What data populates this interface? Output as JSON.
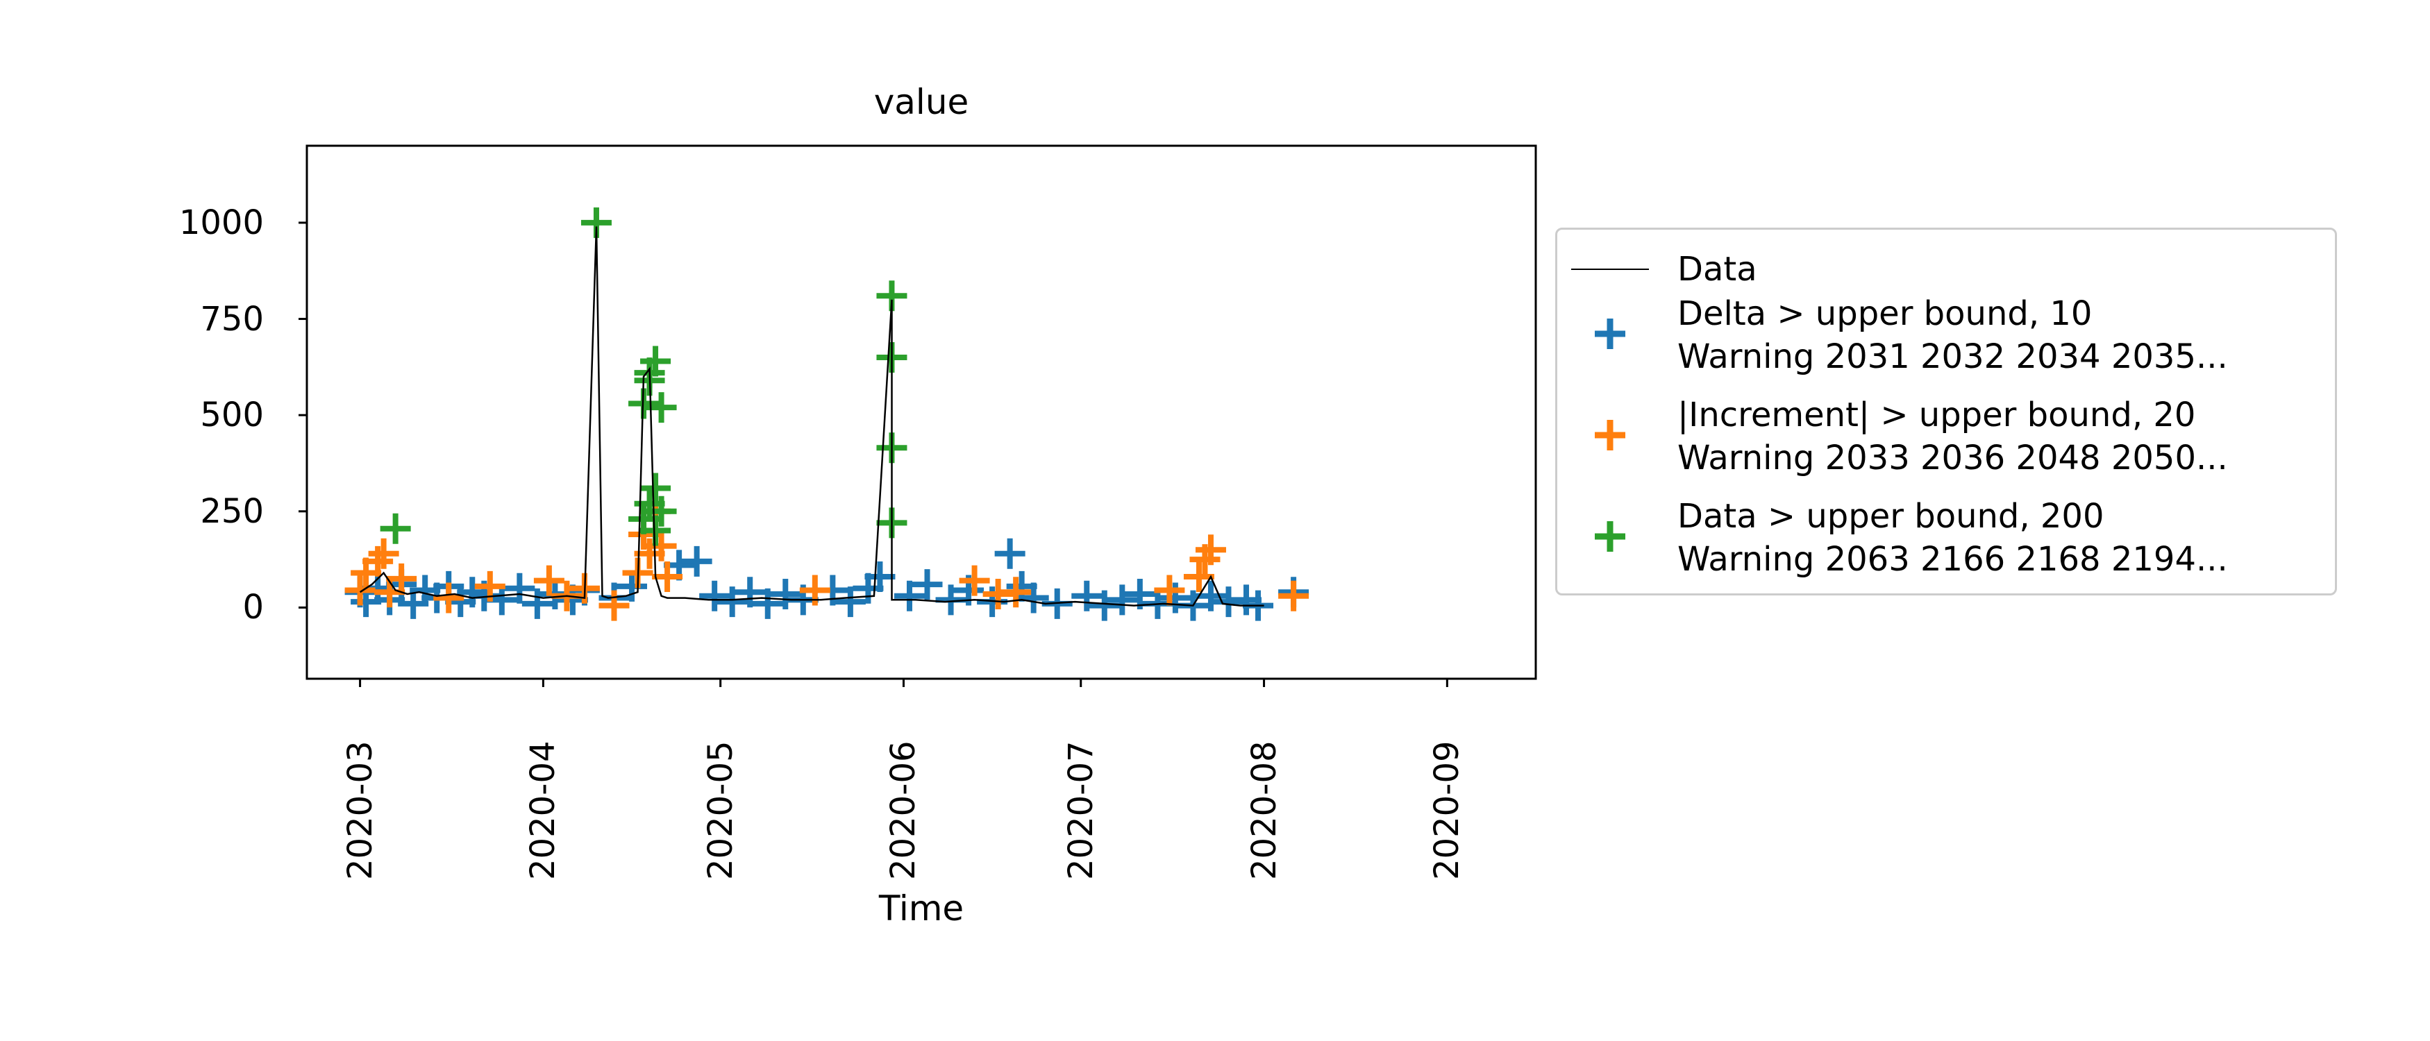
{
  "chart_data": {
    "type": "scatter",
    "title": "value",
    "xlabel": "Time",
    "ylabel": "",
    "xlim": [
      "2020-02-21",
      "2020-09-16"
    ],
    "ylim": [
      -185,
      1200
    ],
    "yticks": [
      {
        "value": 0,
        "label": "0"
      },
      {
        "value": 250,
        "label": "250"
      },
      {
        "value": 500,
        "label": "500"
      },
      {
        "value": 750,
        "label": "750"
      },
      {
        "value": 1000,
        "label": "1000"
      }
    ],
    "xticks": [
      {
        "value": "2020-03-01",
        "label": "2020-03"
      },
      {
        "value": "2020-04-01",
        "label": "2020-04"
      },
      {
        "value": "2020-05-01",
        "label": "2020-05"
      },
      {
        "value": "2020-06-01",
        "label": "2020-06"
      },
      {
        "value": "2020-07-01",
        "label": "2020-07"
      },
      {
        "value": "2020-08-01",
        "label": "2020-08"
      },
      {
        "value": "2020-09-01",
        "label": "2020-09"
      }
    ],
    "legend_position": "right",
    "colors": {
      "data": "#000000",
      "delta": "#1f77b4",
      "increment": "#ff7f0e",
      "upper": "#2ca02c"
    },
    "series": [
      {
        "name": "Data",
        "kind": "line",
        "x": [
          "2020-03-01",
          "2020-03-03",
          "2020-03-05",
          "2020-03-07",
          "2020-03-09",
          "2020-03-11",
          "2020-03-14",
          "2020-03-17",
          "2020-03-20",
          "2020-03-24",
          "2020-03-28",
          "2020-04-01",
          "2020-04-05",
          "2020-04-08",
          "2020-04-10",
          "2020-04-11",
          "2020-04-12",
          "2020-04-15",
          "2020-04-17",
          "2020-04-18",
          "2020-04-19",
          "2020-04-20",
          "2020-04-21",
          "2020-04-22",
          "2020-04-25",
          "2020-04-29",
          "2020-05-03",
          "2020-05-08",
          "2020-05-13",
          "2020-05-18",
          "2020-05-22",
          "2020-05-27",
          "2020-05-30",
          "2020-05-30",
          "2020-05-30",
          "2020-05-30",
          "2020-06-03",
          "2020-06-08",
          "2020-06-13",
          "2020-06-18",
          "2020-06-21",
          "2020-06-25",
          "2020-06-30",
          "2020-07-05",
          "2020-07-10",
          "2020-07-15",
          "2020-07-20",
          "2020-07-23",
          "2020-07-25",
          "2020-07-28",
          "2020-08-01"
        ],
        "values": [
          40,
          60,
          90,
          45,
          35,
          40,
          30,
          35,
          25,
          30,
          35,
          25,
          30,
          25,
          990,
          30,
          25,
          30,
          40,
          600,
          620,
          80,
          30,
          25,
          25,
          20,
          20,
          25,
          20,
          20,
          25,
          30,
          800,
          220,
          25,
          20,
          20,
          15,
          20,
          15,
          20,
          10,
          15,
          10,
          5,
          10,
          5,
          80,
          10,
          5,
          5
        ]
      },
      {
        "name": "Delta > upper bound, 10\nWarning 2031 2032 2034 2035...",
        "kind": "marker",
        "x": [
          "2020-03-01",
          "2020-03-02",
          "2020-03-04",
          "2020-03-06",
          "2020-03-08",
          "2020-03-10",
          "2020-03-12",
          "2020-03-14",
          "2020-03-16",
          "2020-03-18",
          "2020-03-20",
          "2020-03-22",
          "2020-03-25",
          "2020-03-28",
          "2020-03-31",
          "2020-04-03",
          "2020-04-06",
          "2020-04-08",
          "2020-04-13",
          "2020-04-16",
          "2020-04-24",
          "2020-04-27",
          "2020-04-30",
          "2020-05-03",
          "2020-05-06",
          "2020-05-09",
          "2020-05-12",
          "2020-05-15",
          "2020-05-20",
          "2020-05-23",
          "2020-05-26",
          "2020-05-28",
          "2020-06-02",
          "2020-06-05",
          "2020-06-09",
          "2020-06-12",
          "2020-06-16",
          "2020-06-19",
          "2020-06-21",
          "2020-06-23",
          "2020-06-27",
          "2020-07-02",
          "2020-07-05",
          "2020-07-08",
          "2020-07-11",
          "2020-07-14",
          "2020-07-17",
          "2020-07-20",
          "2020-07-23",
          "2020-07-26",
          "2020-07-29",
          "2020-07-31",
          "2020-08-06"
        ],
        "values": [
          40,
          15,
          50,
          20,
          60,
          10,
          45,
          25,
          55,
          15,
          40,
          30,
          20,
          50,
          10,
          35,
          20,
          45,
          25,
          55,
          110,
          120,
          30,
          15,
          40,
          10,
          35,
          20,
          45,
          15,
          50,
          80,
          30,
          60,
          20,
          45,
          15,
          140,
          55,
          25,
          10,
          30,
          5,
          20,
          35,
          10,
          25,
          5,
          30,
          15,
          20,
          5,
          40
        ]
      },
      {
        "name": "|Increment| > upper bound, 20\nWarning 2033 2036 2048 2050...",
        "kind": "marker",
        "x": [
          "2020-03-01",
          "2020-03-02",
          "2020-03-04",
          "2020-03-05",
          "2020-03-06",
          "2020-03-08",
          "2020-03-16",
          "2020-03-23",
          "2020-04-02",
          "2020-04-05",
          "2020-04-08",
          "2020-04-13",
          "2020-04-17",
          "2020-04-18",
          "2020-04-19",
          "2020-04-20",
          "2020-04-21",
          "2020-04-22",
          "2020-05-17",
          "2020-06-13",
          "2020-06-17",
          "2020-06-20",
          "2020-07-16",
          "2020-07-21",
          "2020-07-22",
          "2020-07-23",
          "2020-08-06"
        ],
        "values": [
          45,
          90,
          120,
          140,
          40,
          75,
          25,
          55,
          70,
          30,
          50,
          5,
          90,
          190,
          140,
          250,
          160,
          80,
          45,
          70,
          35,
          40,
          45,
          80,
          125,
          150,
          30
        ]
      },
      {
        "name": "Data > upper bound, 200\nWarning 2063 2166 2168 2194...",
        "kind": "marker",
        "x": [
          "2020-03-07",
          "2020-04-10",
          "2020-04-18",
          "2020-04-18",
          "2020-04-19",
          "2020-04-19",
          "2020-04-20",
          "2020-04-20",
          "2020-04-21",
          "2020-04-21",
          "2020-04-19",
          "2020-04-20",
          "2020-05-30",
          "2020-05-30",
          "2020-05-30",
          "2020-05-30"
        ],
        "values": [
          205,
          1000,
          230,
          530,
          610,
          270,
          640,
          310,
          250,
          520,
          590,
          200,
          810,
          650,
          415,
          220
        ]
      }
    ]
  }
}
